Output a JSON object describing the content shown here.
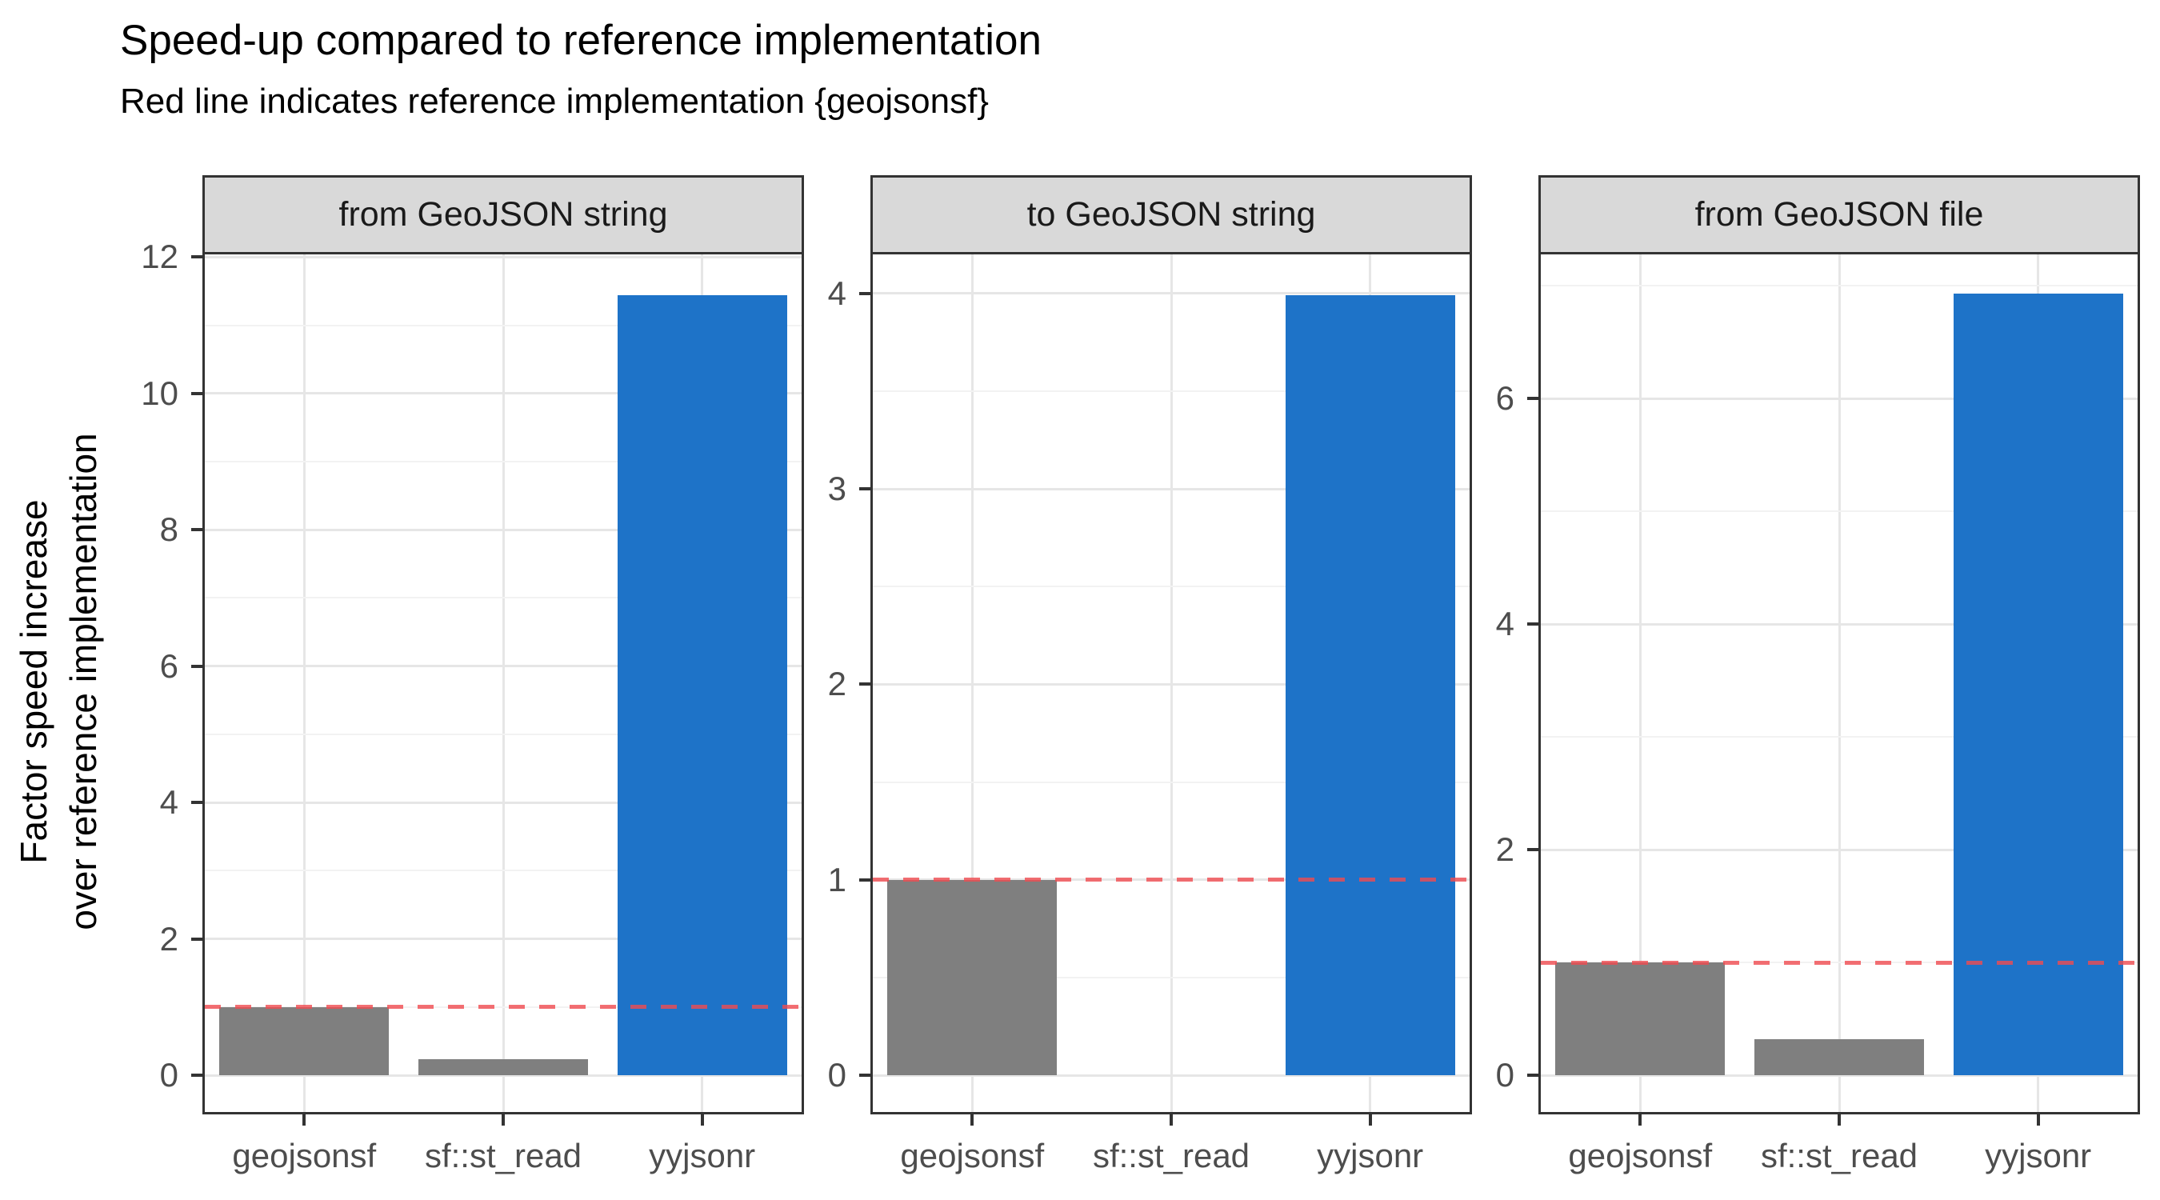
{
  "title": "Speed-up compared to reference implementation",
  "subtitle": "Red line indicates reference implementation {geojsonsf}",
  "y_axis": {
    "label_line1": "Factor speed increase",
    "label_line2": "over reference implementation"
  },
  "reference_line": {
    "value": 1,
    "style": "dashed",
    "meaning": "reference implementation {geojsonsf}"
  },
  "colors": {
    "bar_default": "#7f7f7f",
    "bar_highlight": "#1e73c8",
    "highlight_category": "yyjsonr",
    "reference_line": "rgba(240,75,80,0.8)",
    "strip_background": "#d9d9d9",
    "panel_border": "#333333",
    "grid_major": "#e6e6e6",
    "grid_minor": "#f2f2f2",
    "axis_text": "#4d4d4d"
  },
  "chart_data": {
    "type": "bar",
    "categories": [
      "geojsonsf",
      "sf::st_read",
      "yyjsonr"
    ],
    "ylabel": "Factor speed increase over reference implementation",
    "xlabel": "",
    "grid": true,
    "legend": false,
    "reference_value": 1,
    "facets": [
      {
        "label": "from GeoJSON string",
        "values": [
          1.0,
          0.23,
          11.44
        ],
        "yticks": [
          0,
          2,
          4,
          6,
          8,
          10,
          12
        ],
        "ylim": [
          0,
          12.04
        ]
      },
      {
        "label": "to GeoJSON string",
        "values": [
          1.0,
          null,
          3.99
        ],
        "yticks": [
          0,
          1,
          2,
          3,
          4
        ],
        "ylim": [
          0,
          4.2
        ]
      },
      {
        "label": "from GeoJSON file",
        "values": [
          1.0,
          0.32,
          6.93
        ],
        "yticks": [
          0,
          2,
          4,
          6
        ],
        "ylim": [
          0,
          7.28
        ]
      }
    ]
  }
}
